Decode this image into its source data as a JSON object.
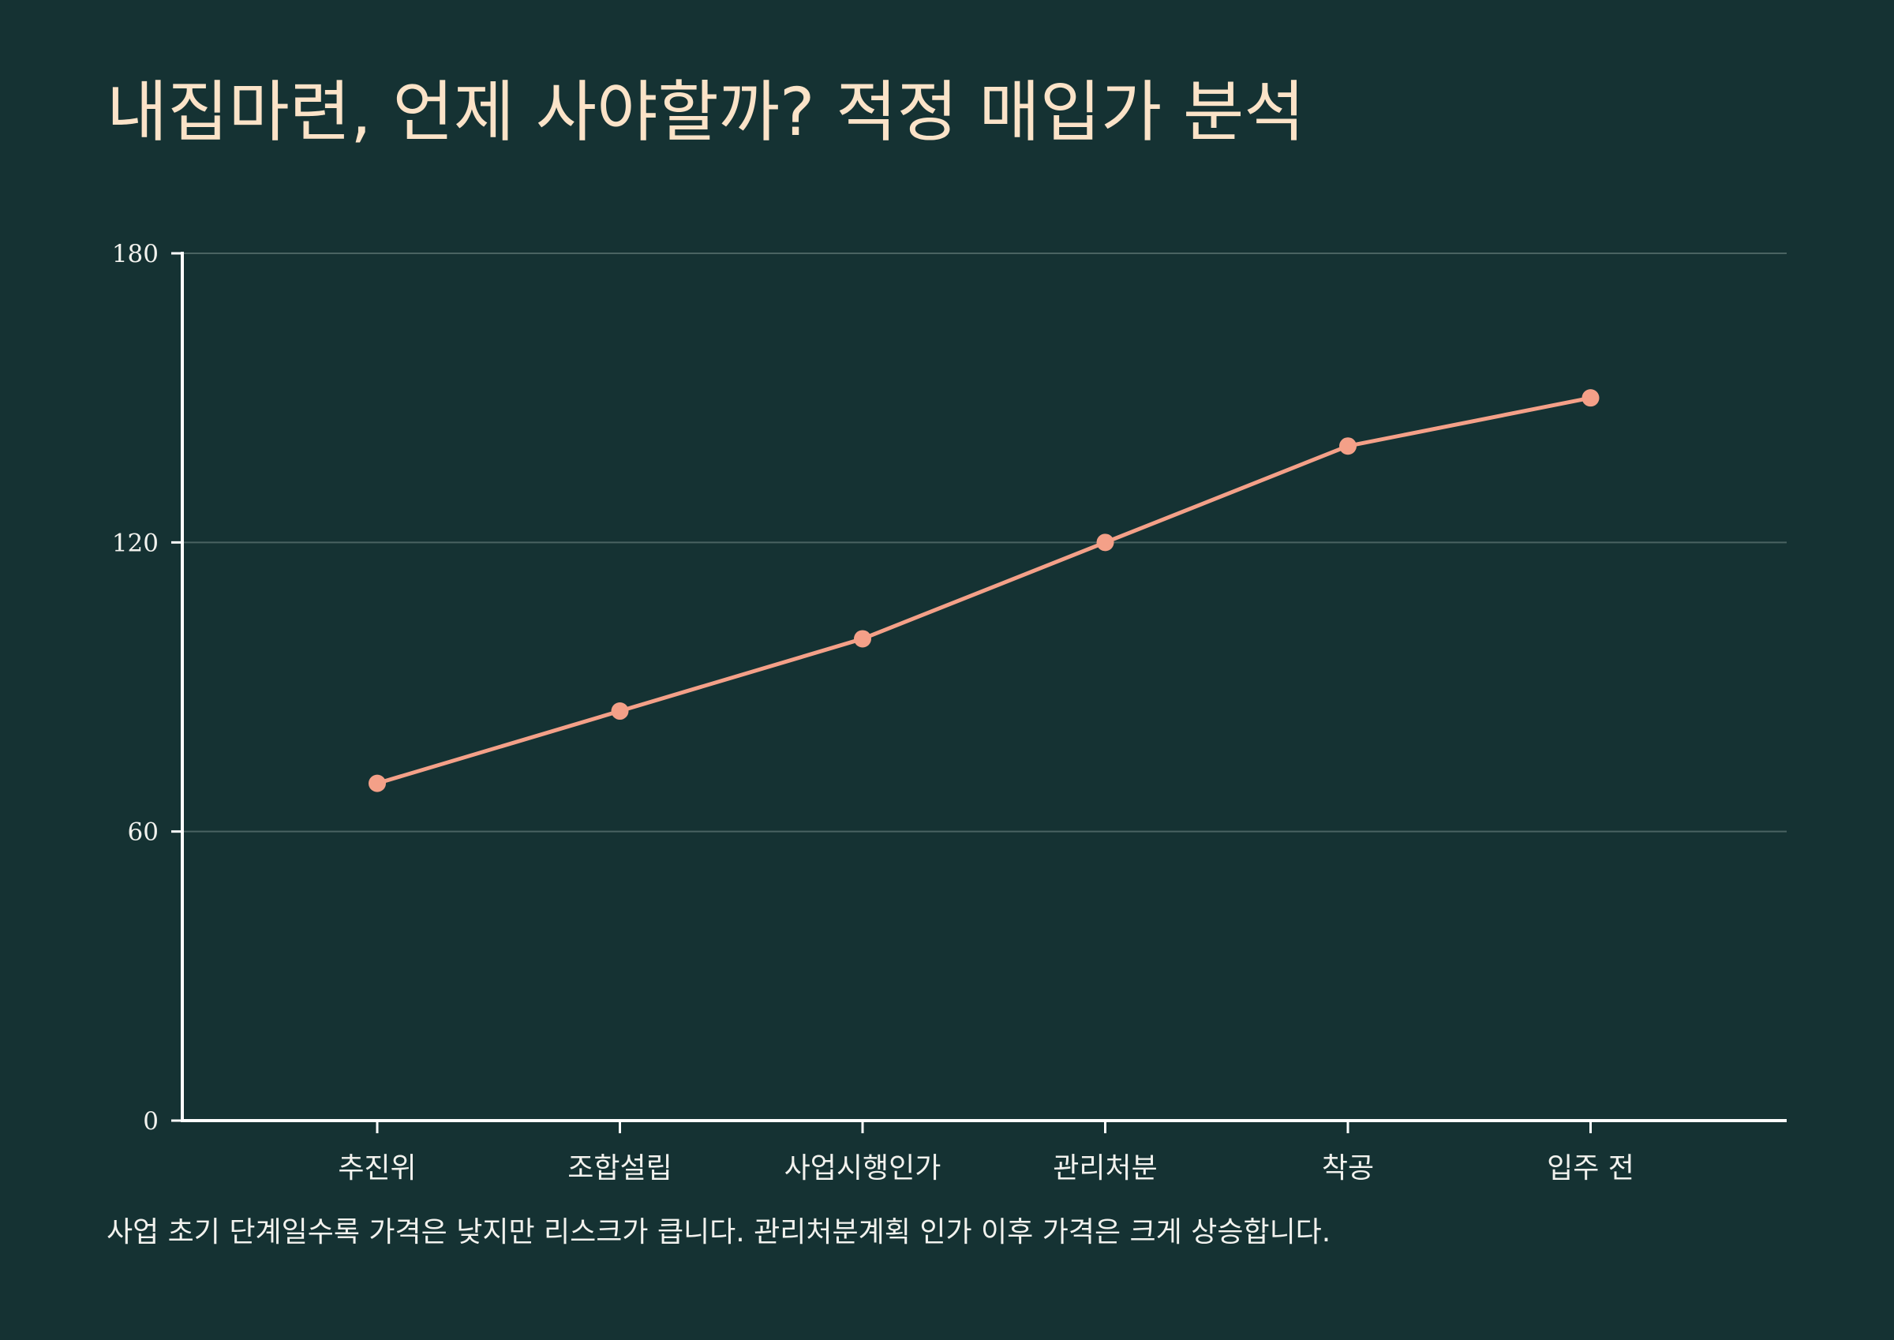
{
  "title": "내집마련, 언제 사야할까? 적정 매입가 분석",
  "caption": "사업 초기 단계일수록 가격은 낮지만 리스크가 큽니다. 관리처분계획 인가 이후 가격은 크게 상승합니다.",
  "colors": {
    "background": "#153233",
    "title": "#FBE3C8",
    "axis": "#FFFFFF",
    "grid": "#4A6362",
    "text": "#F2F2EE",
    "series": "#F4A088"
  },
  "chart_data": {
    "type": "line",
    "categories": [
      "추진위",
      "조합설립",
      "사업시행인가",
      "관리처분",
      "착공",
      "입주 전"
    ],
    "series": [
      {
        "values": [
          70,
          85,
          100,
          120,
          140,
          150
        ]
      }
    ],
    "yticks": [
      0,
      60,
      120,
      180
    ],
    "ylim": [
      0,
      180
    ],
    "grid": true,
    "legend": "none",
    "xlabel": "",
    "ylabel": ""
  }
}
